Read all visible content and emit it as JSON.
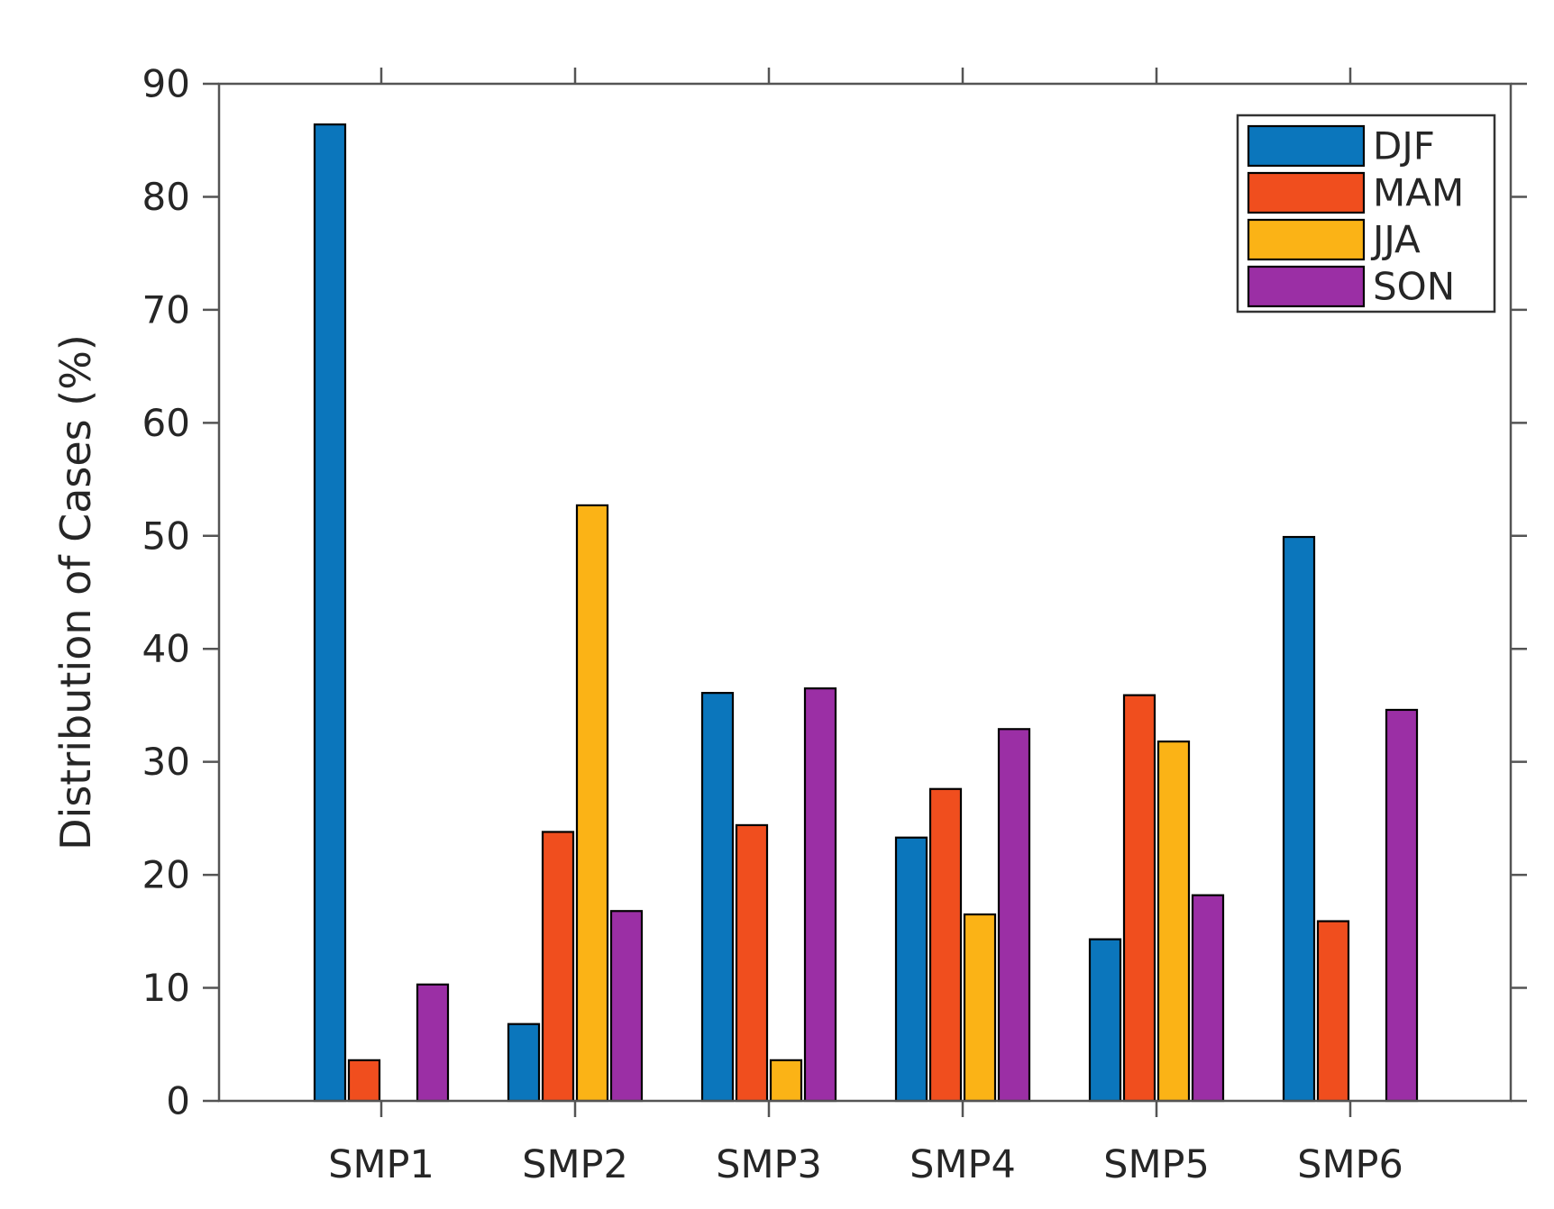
{
  "figure": {
    "background": "#ffffff"
  },
  "chart_data": {
    "type": "bar",
    "title": "",
    "xlabel": "",
    "ylabel": "Distribution of Cases (%)",
    "categories": [
      "SMP1",
      "SMP2",
      "SMP3",
      "SMP4",
      "SMP5",
      "SMP6"
    ],
    "series": [
      {
        "name": "DJF",
        "color": "#0b76bc",
        "values": [
          86.4,
          6.8,
          36.1,
          23.3,
          14.3,
          49.9
        ]
      },
      {
        "name": "MAM",
        "color": "#f04e1e",
        "values": [
          3.6,
          23.8,
          24.4,
          27.6,
          35.9,
          15.9
        ]
      },
      {
        "name": "JJA",
        "color": "#fbb316",
        "values": [
          0,
          52.7,
          3.6,
          16.5,
          31.8,
          0
        ]
      },
      {
        "name": "SON",
        "color": "#9b2fa5",
        "values": [
          10.3,
          16.8,
          36.5,
          32.9,
          18.2,
          34.6
        ]
      }
    ],
    "ylim": [
      0,
      90
    ],
    "ytick_step": 10,
    "ytick_labels": [
      "0",
      "10",
      "20",
      "30",
      "40",
      "50",
      "60",
      "70",
      "80",
      "90"
    ],
    "grid": false,
    "legend_position": "upper right",
    "legend_entries": [
      "DJF",
      "MAM",
      "JJA",
      "SON"
    ],
    "axis_color": "#545454",
    "text_color": "#262626",
    "bar_edge_color": "#000000",
    "legend_border_color": "#333333"
  }
}
